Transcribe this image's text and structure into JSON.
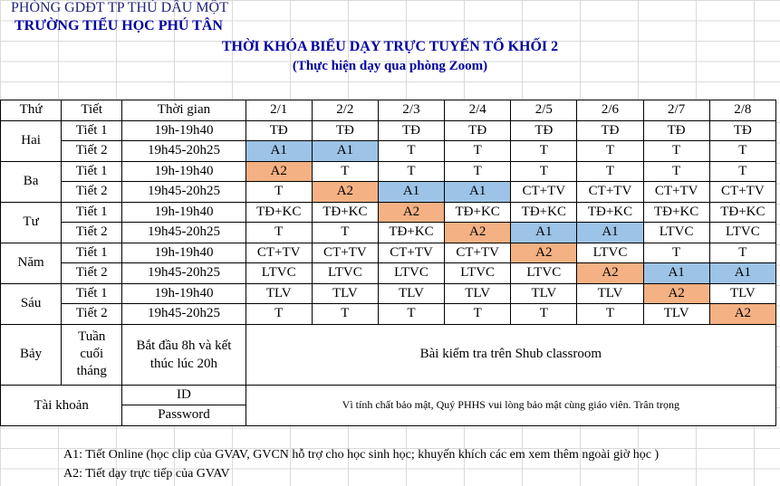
{
  "header": {
    "dept": "PHÒNG GDĐT TP THỦ DẦU MỘT",
    "school": "TRƯỜNG TIỂU HỌC PHÚ TÂN",
    "title": "THỜI KHÓA BIỂU DẠY TRỰC TUYẾN TỔ KHỐI 2",
    "subtitle": "(Thực hiện dạy qua phòng Zoom)"
  },
  "columns": {
    "day": "Thứ",
    "period": "Tiết",
    "time": "Thời gian",
    "classes": [
      "2/1",
      "2/2",
      "2/3",
      "2/4",
      "2/5",
      "2/6",
      "2/7",
      "2/8"
    ]
  },
  "days": [
    {
      "day": "Hai",
      "rows": [
        {
          "period": "Tiết 1",
          "time": "19h-19h40",
          "cells": [
            "TĐ",
            "TĐ",
            "TĐ",
            "TĐ",
            "TĐ",
            "TĐ",
            "TĐ",
            "TĐ"
          ]
        },
        {
          "period": "Tiết 2",
          "time": "19h45-20h25",
          "cells": [
            "A1",
            "A1",
            "T",
            "T",
            "T",
            "T",
            "T",
            "T"
          ]
        }
      ]
    },
    {
      "day": "Ba",
      "rows": [
        {
          "period": "Tiết 1",
          "time": "19h-19h40",
          "cells": [
            "A2",
            "T",
            "T",
            "T",
            "T",
            "T",
            "T",
            "T"
          ]
        },
        {
          "period": "Tiết 2",
          "time": "19h45-20h25",
          "cells": [
            "T",
            "A2",
            "A1",
            "A1",
            "CT+TV",
            "CT+TV",
            "CT+TV",
            "CT+TV"
          ]
        }
      ]
    },
    {
      "day": "Tư",
      "rows": [
        {
          "period": "Tiết 1",
          "time": "19h-19h40",
          "cells": [
            "TĐ+KC",
            "TĐ+KC",
            "A2",
            "TĐ+KC",
            "TĐ+KC",
            "TĐ+KC",
            "TĐ+KC",
            "TĐ+KC"
          ]
        },
        {
          "period": "Tiết 2",
          "time": "19h45-20h25",
          "cells": [
            "T",
            "T",
            "TĐ+KC",
            "A2",
            "A1",
            "A1",
            "LTVC",
            "LTVC"
          ]
        }
      ]
    },
    {
      "day": "Năm",
      "rows": [
        {
          "period": "Tiết 1",
          "time": "19h-19h40",
          "cells": [
            "CT+TV",
            "CT+TV",
            "CT+TV",
            "CT+TV",
            "A2",
            "LTVC",
            "T",
            "T"
          ]
        },
        {
          "period": "Tiết 2",
          "time": "19h45-20h25",
          "cells": [
            "LTVC",
            "LTVC",
            "LTVC",
            "LTVC",
            "LTVC",
            "A2",
            "A1",
            "A1"
          ]
        }
      ]
    },
    {
      "day": "Sáu",
      "rows": [
        {
          "period": "Tiết 1",
          "time": "19h-19h40",
          "cells": [
            "TLV",
            "TLV",
            "TLV",
            "TLV",
            "TLV",
            "TLV",
            "A2",
            "TLV"
          ]
        },
        {
          "period": "Tiết 2",
          "time": "19h45-20h25",
          "cells": [
            "T",
            "T",
            "T",
            "T",
            "T",
            "T",
            "TLV",
            "A2"
          ]
        }
      ]
    }
  ],
  "saturday": {
    "day": "Bảy",
    "period": "Tuần cuối tháng",
    "time": "Bắt đầu 8h và kết thúc lúc 20h",
    "content": "Bài kiểm tra trên Shub classroom"
  },
  "account": {
    "label": "Tài khoản",
    "id_label": "ID",
    "password_label": "Password",
    "note": "Vì tính chất bảo mật, Quý PHHS vui lòng bảo mật cùng giáo viên. Trân trọng"
  },
  "colors": {
    "A1": "#9dc3e6",
    "A2": "#f4b183"
  },
  "footnotes": [
    "A1: Tiết Online  (học clip của GVAV, GVCN hỗ trợ cho học sinh học; khuyến khích các em xem thêm ngoài giờ học )",
    "A2: Tiết dạy trực tiếp của GVAV"
  ]
}
